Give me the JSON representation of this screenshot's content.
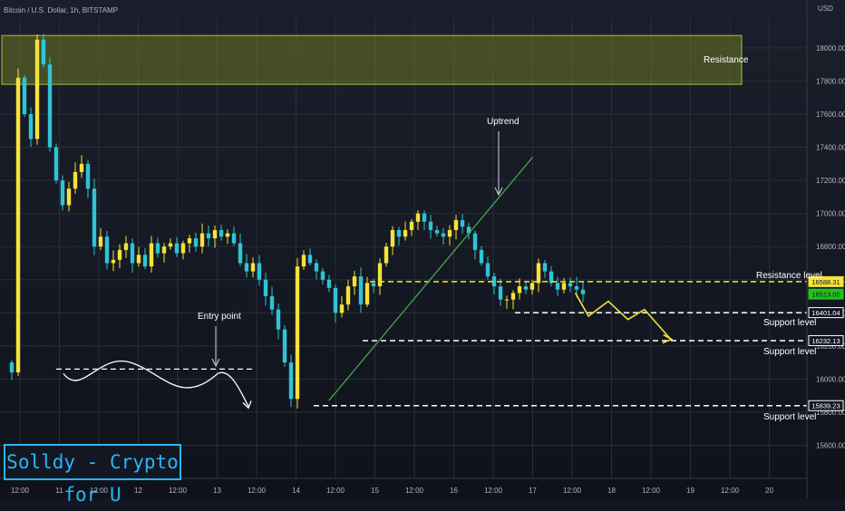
{
  "header": {
    "symbol": "Bitcoin / U.S. Dollar, 1h, BITSTAMP"
  },
  "branding": {
    "badge": "Solldy - Crypto for U"
  },
  "colors": {
    "up": "#f5e23b",
    "down": "#2ec4d6",
    "line_green": "#4caf50",
    "resistance_zone": "#7d8a22",
    "price_now": "#22c21a",
    "yellow_line": "#f5e23b"
  },
  "chart_data": {
    "type": "candlestick",
    "symbol": "Bitcoin / U.S. Dollar",
    "timeframe": "1h",
    "exchange": "BITSTAMP",
    "currency_label": "USD",
    "ylim": [
      15400,
      18180
    ],
    "y_ticks": [
      15600,
      15800,
      16000,
      16200,
      16400,
      16600,
      16800,
      17000,
      17200,
      17400,
      17600,
      17800,
      18000
    ],
    "x_ticks": [
      "12:00",
      "11",
      "12:00",
      "12",
      "12:00",
      "13",
      "12:00",
      "14",
      "12:00",
      "15",
      "12:00",
      "16",
      "12:00",
      "17",
      "12:00",
      "18",
      "12:00",
      "19",
      "12:00",
      "20"
    ],
    "grid": true,
    "price_labels": [
      {
        "value": "16588.31",
        "role": "resistance"
      },
      {
        "value": "16513.00",
        "role": "last-price"
      },
      {
        "value": "16401.04",
        "role": "support"
      },
      {
        "value": "16232.13",
        "role": "support"
      },
      {
        "value": "15839.23",
        "role": "support"
      }
    ],
    "resistance_zone": {
      "label": "Resistance",
      "low": 17780,
      "high": 18075
    },
    "levels": [
      {
        "label": "Resistance level",
        "price": 16588.31,
        "style": "dashed-yellow"
      },
      {
        "label": "Support level",
        "price": 16401.04,
        "style": "dashed-white"
      },
      {
        "label": "Support level",
        "price": 16232.13,
        "style": "dashed-white"
      },
      {
        "label": "Support level",
        "price": 15839.23,
        "style": "dashed-white"
      }
    ],
    "annotations": [
      {
        "text": "Uptrend"
      },
      {
        "text": "Entry point"
      }
    ],
    "trendline": {
      "start": {
        "time": "14 10:00",
        "price": 15870
      },
      "end": {
        "time": "17 00:00",
        "price": 17340
      }
    },
    "projection": [
      {
        "time": "17 13:00",
        "price": 16520
      },
      {
        "time": "17 17:00",
        "price": 16380
      },
      {
        "time": "17 23:00",
        "price": 16470
      },
      {
        "time": "18 05:00",
        "price": 16360
      },
      {
        "time": "18 10:00",
        "price": 16420
      },
      {
        "time": "18 18:00",
        "price": 16240
      }
    ],
    "entry_marker": {
      "dashed_price": 16060,
      "wave_start_price": 16000
    },
    "closes": [
      16040,
      17820,
      17600,
      17450,
      18050,
      17900,
      17400,
      17200,
      17050,
      17150,
      17250,
      17300,
      17150,
      16800,
      16860,
      16700,
      16720,
      16780,
      16820,
      16700,
      16750,
      16680,
      16820,
      16760,
      16800,
      16820,
      16760,
      16820,
      16850,
      16800,
      16880,
      16850,
      16900,
      16860,
      16880,
      16820,
      16700,
      16650,
      16700,
      16600,
      16500,
      16420,
      16300,
      16100,
      15880,
      16680,
      16750,
      16700,
      16650,
      16600,
      16550,
      16400,
      16450,
      16560,
      16620,
      16450,
      16580,
      16560,
      16700,
      16800,
      16900,
      16860,
      16900,
      16950,
      17000,
      16950,
      16900,
      16880,
      16860,
      16900,
      16960,
      16920,
      16880,
      16780,
      16700,
      16620,
      16560,
      16480,
      16480,
      16520,
      16560,
      16540,
      16580,
      16700,
      16650,
      16580,
      16540,
      16580,
      16560,
      16540,
      16513
    ]
  }
}
